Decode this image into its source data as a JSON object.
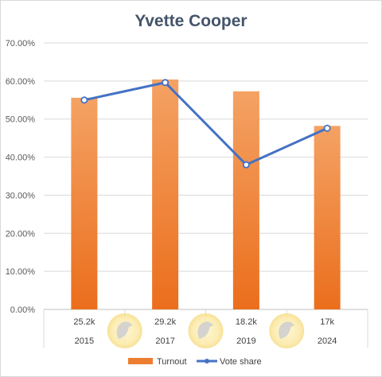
{
  "chart_data": {
    "type": "bar",
    "title": "Yvette Cooper",
    "categories": [
      "2015",
      "2017",
      "2019",
      "2024"
    ],
    "category_sublabels": [
      "25.2k",
      "29.2k",
      "18.2k",
      "17k"
    ],
    "ylim": [
      0,
      70
    ],
    "y_ticks": [
      "0.00%",
      "10.00%",
      "20.00%",
      "30.00%",
      "40.00%",
      "50.00%",
      "60.00%",
      "70.00%"
    ],
    "grid": true,
    "legend_position": "bottom",
    "series": [
      {
        "name": "Turnout",
        "kind": "bar",
        "color": "#ed7d31",
        "values": [
          55.6,
          60.4,
          57.3,
          48.2
        ]
      },
      {
        "name": "Vote share",
        "kind": "line",
        "color": "#4472c4",
        "values": [
          55.0,
          59.6,
          38.0,
          47.6
        ]
      }
    ]
  }
}
